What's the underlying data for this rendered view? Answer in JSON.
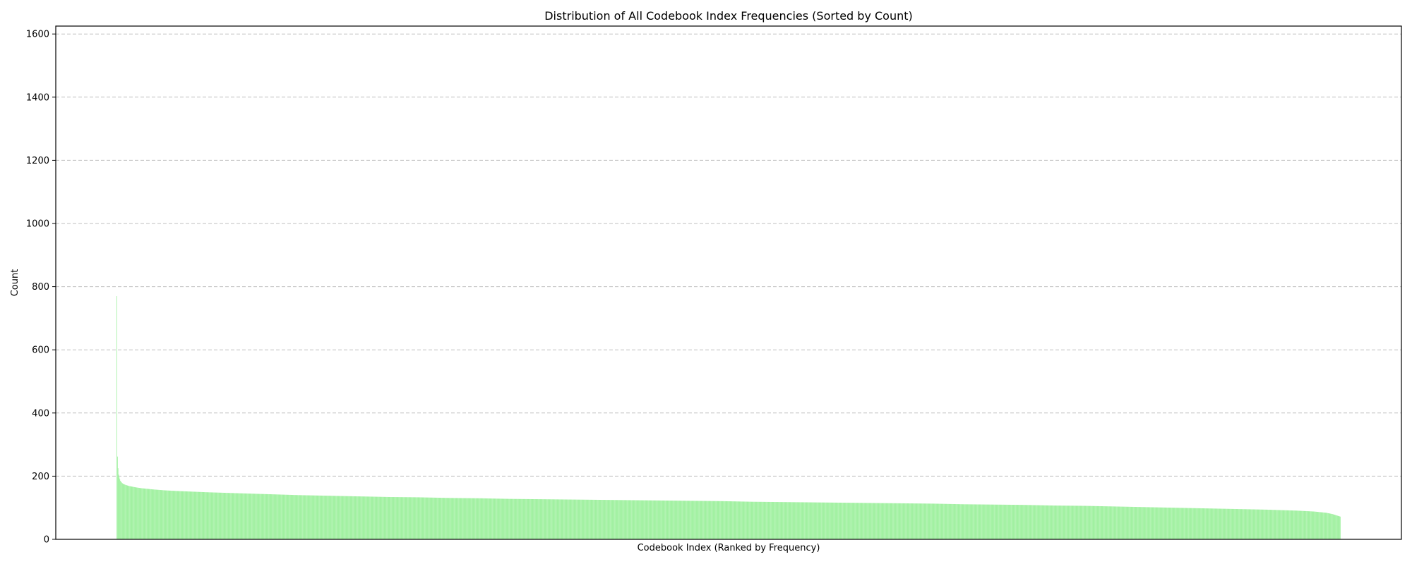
{
  "chart_data": {
    "type": "bar",
    "title": "Distribution of All Codebook Index Frequencies (Sorted by Count)",
    "xlabel": "Codebook Index (Ranked by Frequency)",
    "ylabel": "Count",
    "ylim": [
      0,
      1625
    ],
    "yticks": [
      0,
      200,
      400,
      600,
      800,
      1000,
      1200,
      1400,
      1600
    ],
    "grid": "y-dashed",
    "bar_color": "#90EE90",
    "series": [
      {
        "profile": [
          [
            0,
            770
          ],
          [
            1,
            262
          ],
          [
            2,
            225
          ],
          [
            3,
            205
          ],
          [
            4,
            196
          ],
          [
            5,
            190
          ],
          [
            6,
            185
          ],
          [
            8,
            180
          ],
          [
            10,
            176
          ],
          [
            15,
            172
          ],
          [
            20,
            169
          ],
          [
            30,
            165
          ],
          [
            40,
            162
          ],
          [
            60,
            158
          ],
          [
            80,
            155
          ],
          [
            100,
            153
          ],
          [
            150,
            149
          ],
          [
            200,
            146
          ],
          [
            250,
            143
          ],
          [
            300,
            140
          ],
          [
            350,
            138
          ],
          [
            400,
            136
          ],
          [
            450,
            134
          ],
          [
            500,
            133
          ],
          [
            550,
            131
          ],
          [
            600,
            130
          ],
          [
            650,
            128
          ],
          [
            700,
            127
          ],
          [
            750,
            126
          ],
          [
            800,
            125
          ],
          [
            850,
            124
          ],
          [
            900,
            123
          ],
          [
            950,
            122
          ],
          [
            1000,
            121
          ],
          [
            1050,
            119
          ],
          [
            1100,
            118
          ],
          [
            1150,
            117
          ],
          [
            1200,
            116
          ],
          [
            1250,
            115
          ],
          [
            1300,
            114
          ],
          [
            1350,
            113
          ],
          [
            1400,
            111
          ],
          [
            1450,
            110
          ],
          [
            1500,
            109
          ],
          [
            1550,
            107
          ],
          [
            1600,
            106
          ],
          [
            1650,
            104
          ],
          [
            1700,
            102
          ],
          [
            1750,
            100
          ],
          [
            1800,
            98
          ],
          [
            1850,
            96
          ],
          [
            1900,
            94
          ],
          [
            1950,
            91
          ],
          [
            1980,
            88
          ],
          [
            2000,
            84
          ],
          [
            2010,
            80
          ],
          [
            2023,
            72
          ]
        ],
        "count": 2024
      }
    ]
  }
}
